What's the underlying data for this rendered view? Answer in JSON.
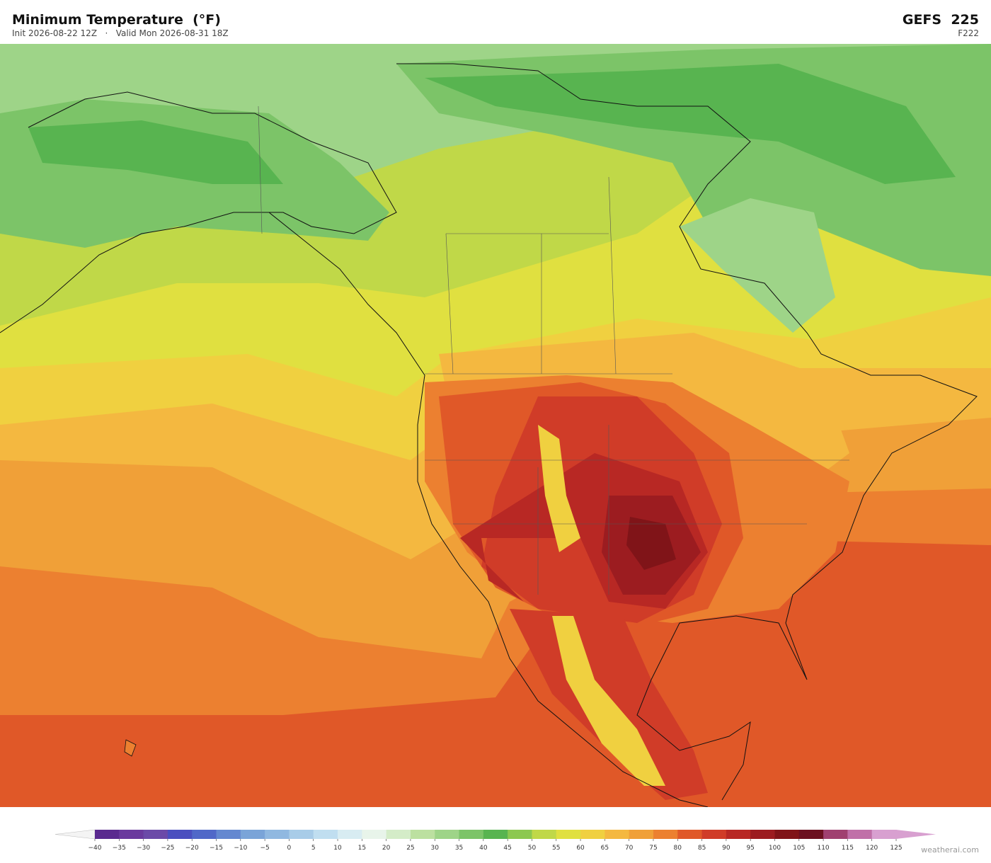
{
  "header": {
    "title": "Minimum Temperature  (°F)",
    "subtitle": "Init 2026-08-22 12Z   ·   Valid Mon 2026-08-31 18Z",
    "model": "GEFS  225",
    "forecast_hour": "F222"
  },
  "colorbar": {
    "ticks": [
      {
        "value": -40,
        "label": "−40"
      },
      {
        "value": -35,
        "label": "−35"
      },
      {
        "value": -30,
        "label": "−30"
      },
      {
        "value": -25,
        "label": "−25"
      },
      {
        "value": -20,
        "label": "−20"
      },
      {
        "value": -15,
        "label": "−15"
      },
      {
        "value": -10,
        "label": "−10"
      },
      {
        "value": -5,
        "label": "−5"
      },
      0,
      5,
      10,
      15,
      20,
      25,
      30,
      35,
      40,
      45,
      50,
      55,
      60,
      65,
      70,
      75,
      80,
      85,
      90,
      95,
      100,
      105,
      110,
      115,
      120,
      125
    ],
    "colors": [
      "#5a2a8f",
      "#6a3a9e",
      "#6b4aa8",
      "#4a4fbf",
      "#5068c8",
      "#6488d0",
      "#7aa4d8",
      "#90b8e0",
      "#a8cce8",
      "#c0def0",
      "#d8ecf2",
      "#e8f4ea",
      "#d4ecc8",
      "#bce0a0",
      "#9ed488",
      "#7cc468",
      "#58b450",
      "#8cc850",
      "#c0d848",
      "#e0e040",
      "#f0d040",
      "#f4b840",
      "#f0a038",
      "#ec8030",
      "#e05828",
      "#d03c28",
      "#b82824",
      "#9c1c20",
      "#801418",
      "#6c1020",
      "#a04070",
      "#c070a8",
      "#d8a0d0"
    ],
    "under_color": "#f4f4f4",
    "over_color": "#d8a0d0"
  },
  "watermark": "weatherai.com"
}
